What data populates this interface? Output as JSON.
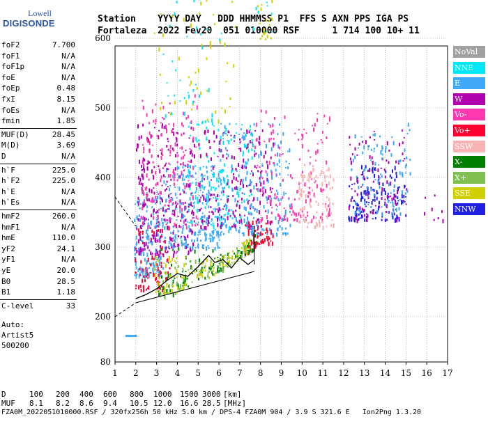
{
  "logo": {
    "brand_top": "Lowell",
    "brand_bottom": "DIGISONDE"
  },
  "header": {
    "line1": "Station    YYYY DAY   DDD HHMMSS P1  FFS S AXN PPS IGA PS",
    "line2": "Fortaleza  2022 Fev20  051 010000 RSF      1 714 100 10+ 11"
  },
  "params": [
    {
      "name": "foF2",
      "value": "7.700"
    },
    {
      "name": "foF1",
      "value": "N/A"
    },
    {
      "name": "foF1p",
      "value": "N/A"
    },
    {
      "name": "foE",
      "value": "N/A"
    },
    {
      "name": "foEp",
      "value": "0.48"
    },
    {
      "name": "fxI",
      "value": "8.15"
    },
    {
      "name": "foEs",
      "value": "N/A"
    },
    {
      "name": "fmin",
      "value": "1.85"
    },
    {
      "name": "MUF(D)",
      "value": "28.45"
    },
    {
      "name": "M(D)",
      "value": "3.69"
    },
    {
      "name": "D",
      "value": "N/A"
    },
    {
      "name": "h`F",
      "value": "225.0"
    },
    {
      "name": "h`F2",
      "value": "225.0"
    },
    {
      "name": "h`E",
      "value": "N/A"
    },
    {
      "name": "h`Es",
      "value": "N/A"
    },
    {
      "name": "hmF2",
      "value": "260.0"
    },
    {
      "name": "hmF1",
      "value": "N/A"
    },
    {
      "name": "hmE",
      "value": "110.0"
    },
    {
      "name": "yF2",
      "value": "24.1"
    },
    {
      "name": "yF1",
      "value": "N/A"
    },
    {
      "name": "yE",
      "value": "20.0"
    },
    {
      "name": "B0",
      "value": "28.5"
    },
    {
      "name": "B1",
      "value": "1.18"
    },
    {
      "name": "C-level",
      "value": "33"
    }
  ],
  "auto": {
    "line1": "Auto:",
    "line2": "Artist5",
    "line3": "500200"
  },
  "legend": [
    {
      "label": "NoVal",
      "color": "#a0a0a0"
    },
    {
      "label": "NNE",
      "color": "#00e8f8"
    },
    {
      "label": "E",
      "color": "#40a8f8"
    },
    {
      "label": "W",
      "color": "#b000b0"
    },
    {
      "label": "Vo-",
      "color": "#ff38b0"
    },
    {
      "label": "Vo+",
      "color": "#ff0030"
    },
    {
      "label": "SSW",
      "color": "#f8b4b4"
    },
    {
      "label": "X-",
      "color": "#008000"
    },
    {
      "label": "X+",
      "color": "#80c050"
    },
    {
      "label": "SSE",
      "color": "#d0d000"
    },
    {
      "label": "NNW",
      "color": "#2020e0"
    }
  ],
  "footer": {
    "d_label": "D",
    "d_values": [
      "100",
      "200",
      "400",
      "600",
      "800",
      "1000",
      "1500",
      "3000",
      "[km]"
    ],
    "muf_label": "MUF",
    "muf_values": [
      "8.1",
      "8.2",
      "8.6",
      "9.4",
      "10.5",
      "12.0",
      "16.6",
      "28.5",
      "[MHz]"
    ],
    "info": "FZA0M_2022051010000.RSF / 320fx256h 50 kHz 5.0 km / DPS-4 FZA0M 904 / 3.9 S 321.6 E   Ion2Png 1.3.20"
  },
  "chart_data": {
    "type": "scatter",
    "title": "",
    "xlabel": "",
    "ylabel": "",
    "xlim": [
      1,
      17
    ],
    "ylim": [
      80,
      900
    ],
    "xticks": [
      1,
      2,
      3,
      4,
      5,
      6,
      7,
      8,
      9,
      10,
      11,
      12,
      13,
      14,
      15,
      16,
      17
    ],
    "yticks": [
      80,
      200,
      300,
      400,
      500,
      600,
      700,
      800,
      900
    ],
    "grid": true,
    "series_colors": {
      "NNE": "#00e8f8",
      "E": "#40a8f8",
      "W": "#b000b0",
      "Vo-": "#ff38b0",
      "Vo+": "#ff0030",
      "SSW": "#f8b4b4",
      "X-": "#008000",
      "X+": "#80c050",
      "SSE": "#d0d000",
      "NNW": "#2020e0"
    },
    "clusters": [
      {
        "series": "E",
        "x": [
          1.9,
          3.3
        ],
        "y": [
          260,
          380
        ],
        "n": 180
      },
      {
        "series": "E",
        "x": [
          3.3,
          6.0
        ],
        "y": [
          300,
          420
        ],
        "n": 260
      },
      {
        "series": "W",
        "x": [
          2.0,
          4.8
        ],
        "y": [
          290,
          480
        ],
        "n": 260
      },
      {
        "series": "Vo-",
        "x": [
          2.2,
          5.0
        ],
        "y": [
          330,
          520
        ],
        "n": 160
      },
      {
        "series": "NNE",
        "x": [
          4.5,
          7.6
        ],
        "y": [
          330,
          480
        ],
        "n": 160
      },
      {
        "series": "W",
        "x": [
          5.0,
          8.6
        ],
        "y": [
          330,
          470
        ],
        "n": 200
      },
      {
        "series": "E",
        "x": [
          6.0,
          9.4
        ],
        "y": [
          320,
          480
        ],
        "n": 200
      },
      {
        "series": "Vo-",
        "x": [
          7.7,
          11.3
        ],
        "y": [
          340,
          500
        ],
        "n": 150
      },
      {
        "series": "SSW",
        "x": [
          9.8,
          11.5
        ],
        "y": [
          330,
          420
        ],
        "n": 100
      },
      {
        "series": "NNW",
        "x": [
          12.2,
          15.0
        ],
        "y": [
          340,
          420
        ],
        "n": 140
      },
      {
        "series": "W",
        "x": [
          12.2,
          15.0
        ],
        "y": [
          340,
          470
        ],
        "n": 100
      },
      {
        "series": "E",
        "x": [
          12.3,
          15.2
        ],
        "y": [
          350,
          480
        ],
        "n": 100
      },
      {
        "series": "Vo+",
        "x": [
          1.9,
          3.6
        ],
        "y": [
          240,
          330
        ],
        "n": 80
      },
      {
        "series": "Vo+",
        "x": [
          7.2,
          8.6
        ],
        "y": [
          260,
          340
        ],
        "n": 70
      },
      {
        "series": "X-",
        "x": [
          3.0,
          7.8
        ],
        "y": [
          230,
          300
        ],
        "n": 110
      },
      {
        "series": "X+",
        "x": [
          3.0,
          7.5
        ],
        "y": [
          225,
          285
        ],
        "n": 90
      },
      {
        "series": "SSE",
        "x": [
          2.8,
          7.5
        ],
        "y": [
          230,
          290
        ],
        "n": 100
      },
      {
        "series": "SSE",
        "x": [
          2.8,
          6.8
        ],
        "y": [
          480,
          690
        ],
        "n": 50
      },
      {
        "series": "NNE",
        "x": [
          3.3,
          6.5
        ],
        "y": [
          480,
          680
        ],
        "n": 40
      },
      {
        "series": "SSE",
        "x": [
          7.8,
          8.6
        ],
        "y": [
          600,
          730
        ],
        "n": 30
      },
      {
        "series": "NNE",
        "x": [
          7.6,
          8.7
        ],
        "y": [
          610,
          720
        ],
        "n": 25
      },
      {
        "series": "NNW",
        "x": [
          7.8,
          8.3
        ],
        "y": [
          660,
          700
        ],
        "n": 8
      },
      {
        "series": "W",
        "x": [
          15.8,
          16.8
        ],
        "y": [
          340,
          380
        ],
        "n": 8
      }
    ],
    "clip_below": [
      {
        "x": 1.9,
        "h": 240
      },
      {
        "x": 3.0,
        "h": 250
      },
      {
        "x": 4.0,
        "h": 260
      },
      {
        "x": 5.0,
        "h": 275
      },
      {
        "x": 6.0,
        "h": 290
      },
      {
        "x": 7.0,
        "h": 310
      },
      {
        "x": 8.0,
        "h": 330
      },
      {
        "x": 9.0,
        "h": 335
      },
      {
        "x": 17.0,
        "h": 335
      }
    ],
    "trace_f2": {
      "series": "NoVal",
      "x": [
        2.0,
        2.5,
        3.0,
        3.5,
        4.0,
        4.5,
        5.0,
        5.5,
        5.8,
        6.2,
        6.6,
        7.0,
        7.4,
        7.7
      ],
      "y": [
        226,
        232,
        240,
        252,
        262,
        258,
        272,
        288,
        278,
        282,
        270,
        285,
        275,
        282
      ]
    },
    "dashed_upper": {
      "x": [
        1.0,
        2.0
      ],
      "y": [
        372,
        330
      ]
    },
    "dashed_lower": {
      "x": [
        1.0,
        2.0
      ],
      "y": [
        200,
        220
      ]
    },
    "solid_lower": {
      "x": [
        2.0,
        7.7
      ],
      "y": [
        220,
        265
      ]
    },
    "isolated_points": [
      {
        "series": "E",
        "x": 1.6,
        "y": 150
      },
      {
        "series": "E",
        "x": 1.75,
        "y": 150
      },
      {
        "series": "E",
        "x": 1.95,
        "y": 150
      },
      {
        "series": "NNE",
        "x": 5.7,
        "y": 745
      }
    ]
  }
}
